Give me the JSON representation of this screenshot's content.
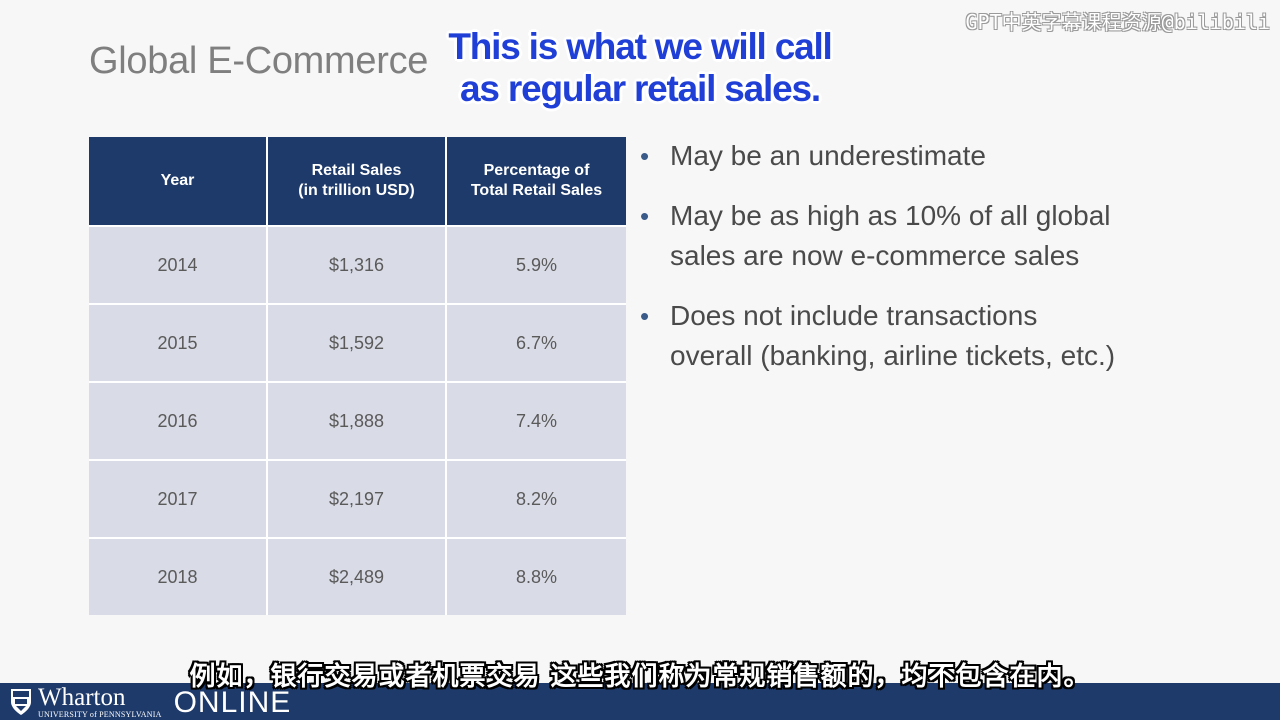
{
  "slide": {
    "title": "Global E-Commerce"
  },
  "overlay_caption": {
    "line1": "This is what we will call",
    "line2": "as regular retail sales."
  },
  "watermark": "GPT中英字幕课程资源@bilibili",
  "table": {
    "headers": [
      "Year",
      "Retail Sales\n(in trillion USD)",
      "Percentage of\nTotal Retail Sales"
    ],
    "header_year": "Year",
    "header_sales_line1": "Retail Sales",
    "header_sales_line2": "(in trillion USD)",
    "header_pct_line1": "Percentage of",
    "header_pct_line2": "Total Retail Sales",
    "rows": [
      {
        "year": "2014",
        "sales": "$1,316",
        "pct": "5.9%"
      },
      {
        "year": "2015",
        "sales": "$1,592",
        "pct": "6.7%"
      },
      {
        "year": "2016",
        "sales": "$1,888",
        "pct": "7.4%"
      },
      {
        "year": "2017",
        "sales": "$2,197",
        "pct": "8.2%"
      },
      {
        "year": "2018",
        "sales": "$2,489",
        "pct": "8.8%"
      }
    ]
  },
  "bullets": {
    "b1_line1": "May be an underestimate",
    "b2_line1": "May be as high as 10% of all global",
    "b2_line2": "sales are now e-commerce sales",
    "b3_line1": "Does not include transactions",
    "b3_line2": "overall (banking, airline tickets, etc.)",
    "marker": "•"
  },
  "cn_caption": "例如，银行交易或者机票交易 这些我们称为常规销售额的，均不包含在内。",
  "footer": {
    "brand": "Wharton",
    "brand_sub": "UNIVERSITY of PENNSYLVANIA",
    "online": "ONLINE"
  },
  "colors": {
    "header_bg": "#1e3a6a",
    "cell_bg": "#d9dbe6",
    "caption_blue": "#1f3fd6",
    "footer_bg": "#1e3a6a"
  }
}
